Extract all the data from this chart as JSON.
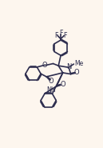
{
  "bg_color": "#fdf6ee",
  "line_color": "#2d2d4e",
  "line_width": 1.2,
  "figsize": [
    1.29,
    1.85
  ],
  "dpi": 100,
  "xlim": [
    -1,
    11
  ],
  "ylim": [
    0,
    15.5
  ]
}
